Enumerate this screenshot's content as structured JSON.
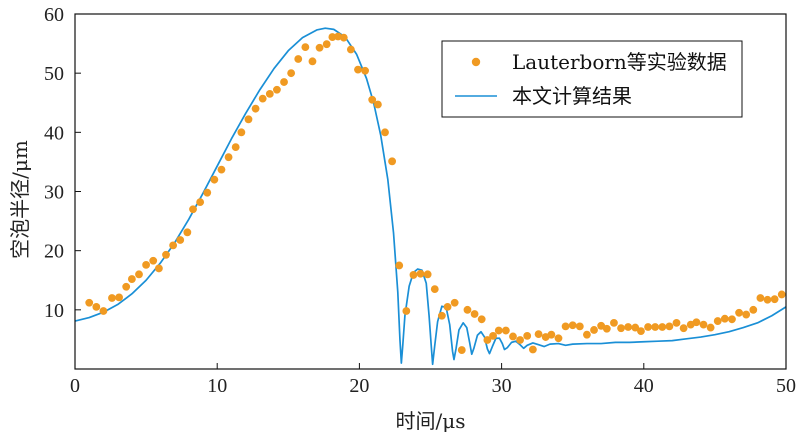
{
  "chart_data": {
    "type": "scatter",
    "xlabel": "时间/μs",
    "ylabel": "空泡半径/μm",
    "xlim": [
      0,
      50
    ],
    "ylim": [
      0,
      60
    ],
    "xticks": [
      "0",
      "10",
      "20",
      "30",
      "40",
      "50"
    ],
    "yticks": [
      "10",
      "20",
      "30",
      "40",
      "50",
      "60"
    ],
    "grid": false,
    "legend_position": "top-right",
    "colors": {
      "experiment": "#f09a22",
      "computed": "#1a8fd6"
    },
    "series": [
      {
        "name": "Lauterborn等实验数据",
        "style": "points",
        "points": [
          [
            1.0,
            11.2
          ],
          [
            1.5,
            10.5
          ],
          [
            2.0,
            9.8
          ],
          [
            2.6,
            12.0
          ],
          [
            3.1,
            12.1
          ],
          [
            3.6,
            13.9
          ],
          [
            4.0,
            15.2
          ],
          [
            4.5,
            16.0
          ],
          [
            5.0,
            17.6
          ],
          [
            5.5,
            18.3
          ],
          [
            5.9,
            17.0
          ],
          [
            6.4,
            19.3
          ],
          [
            6.9,
            20.9
          ],
          [
            7.4,
            21.8
          ],
          [
            7.9,
            23.1
          ],
          [
            8.3,
            27.0
          ],
          [
            8.8,
            28.2
          ],
          [
            9.3,
            29.8
          ],
          [
            9.8,
            32.0
          ],
          [
            10.3,
            33.7
          ],
          [
            10.8,
            35.8
          ],
          [
            11.3,
            37.5
          ],
          [
            11.7,
            40.0
          ],
          [
            12.2,
            42.2
          ],
          [
            12.7,
            44.0
          ],
          [
            13.2,
            45.7
          ],
          [
            13.7,
            46.5
          ],
          [
            14.2,
            47.2
          ],
          [
            14.7,
            48.5
          ],
          [
            15.2,
            50.0
          ],
          [
            15.7,
            52.4
          ],
          [
            16.2,
            54.4
          ],
          [
            16.7,
            52.0
          ],
          [
            17.2,
            54.3
          ],
          [
            17.7,
            54.9
          ],
          [
            18.1,
            56.1
          ],
          [
            18.5,
            56.2
          ],
          [
            18.9,
            56.0
          ],
          [
            19.4,
            54.0
          ],
          [
            19.9,
            50.6
          ],
          [
            20.4,
            50.4
          ],
          [
            20.9,
            45.5
          ],
          [
            21.3,
            44.7
          ],
          [
            21.8,
            40.0
          ],
          [
            22.3,
            35.1
          ],
          [
            22.8,
            17.5
          ],
          [
            23.3,
            9.8
          ],
          [
            23.8,
            15.9
          ],
          [
            24.3,
            16.1
          ],
          [
            24.8,
            16.0
          ],
          [
            25.3,
            13.5
          ],
          [
            25.8,
            9.0
          ],
          [
            26.2,
            10.5
          ],
          [
            26.7,
            11.2
          ],
          [
            27.2,
            3.2
          ],
          [
            27.6,
            10.0
          ],
          [
            28.1,
            9.3
          ],
          [
            28.6,
            8.4
          ],
          [
            29.0,
            4.9
          ],
          [
            29.4,
            5.6
          ],
          [
            29.8,
            6.5
          ],
          [
            30.3,
            6.5
          ],
          [
            30.8,
            5.5
          ],
          [
            31.3,
            4.9
          ],
          [
            31.8,
            5.6
          ],
          [
            32.2,
            3.3
          ],
          [
            32.6,
            5.9
          ],
          [
            33.1,
            5.4
          ],
          [
            33.5,
            5.8
          ],
          [
            34.0,
            5.2
          ],
          [
            34.5,
            7.2
          ],
          [
            35.0,
            7.4
          ],
          [
            35.5,
            7.2
          ],
          [
            36.0,
            5.8
          ],
          [
            36.5,
            6.6
          ],
          [
            37.0,
            7.3
          ],
          [
            37.4,
            6.8
          ],
          [
            37.9,
            7.8
          ],
          [
            38.4,
            6.9
          ],
          [
            38.9,
            7.1
          ],
          [
            39.4,
            7.0
          ],
          [
            39.8,
            6.4
          ],
          [
            40.3,
            7.1
          ],
          [
            40.8,
            7.1
          ],
          [
            41.3,
            7.1
          ],
          [
            41.8,
            7.2
          ],
          [
            42.3,
            7.8
          ],
          [
            42.8,
            6.9
          ],
          [
            43.3,
            7.5
          ],
          [
            43.7,
            7.9
          ],
          [
            44.2,
            7.5
          ],
          [
            44.7,
            7.0
          ],
          [
            45.2,
            8.1
          ],
          [
            45.7,
            8.5
          ],
          [
            46.2,
            8.4
          ],
          [
            46.7,
            9.5
          ],
          [
            47.2,
            9.2
          ],
          [
            47.7,
            10.0
          ],
          [
            48.2,
            12.0
          ],
          [
            48.7,
            11.7
          ],
          [
            49.2,
            11.8
          ],
          [
            49.7,
            12.6
          ]
        ]
      },
      {
        "name": "本文计算结果",
        "style": "line",
        "points": [
          [
            0.0,
            8.1
          ],
          [
            1.0,
            8.7
          ],
          [
            2.0,
            9.6
          ],
          [
            3.0,
            10.9
          ],
          [
            4.0,
            12.7
          ],
          [
            5.0,
            15.0
          ],
          [
            6.0,
            17.9
          ],
          [
            7.0,
            21.3
          ],
          [
            8.0,
            25.3
          ],
          [
            9.0,
            29.7
          ],
          [
            10.0,
            34.3
          ],
          [
            11.0,
            38.9
          ],
          [
            12.0,
            43.2
          ],
          [
            13.0,
            47.2
          ],
          [
            14.0,
            50.8
          ],
          [
            15.0,
            53.8
          ],
          [
            16.0,
            56.0
          ],
          [
            17.0,
            57.3
          ],
          [
            17.6,
            57.6
          ],
          [
            18.2,
            57.4
          ],
          [
            19.0,
            56.1
          ],
          [
            19.8,
            53.2
          ],
          [
            20.5,
            49.1
          ],
          [
            21.0,
            45.0
          ],
          [
            21.5,
            39.5
          ],
          [
            22.0,
            32.0
          ],
          [
            22.4,
            23.0
          ],
          [
            22.7,
            13.0
          ],
          [
            22.85,
            5.0
          ],
          [
            22.95,
            1.0
          ],
          [
            23.05,
            4.0
          ],
          [
            23.2,
            9.0
          ],
          [
            23.5,
            14.0
          ],
          [
            23.8,
            16.3
          ],
          [
            24.1,
            16.9
          ],
          [
            24.4,
            16.7
          ],
          [
            24.7,
            14.5
          ],
          [
            24.9,
            9.0
          ],
          [
            25.05,
            4.0
          ],
          [
            25.15,
            0.8
          ],
          [
            25.3,
            4.0
          ],
          [
            25.5,
            8.0
          ],
          [
            25.8,
            10.6
          ],
          [
            26.1,
            10.4
          ],
          [
            26.35,
            7.5
          ],
          [
            26.55,
            3.0
          ],
          [
            26.65,
            1.6
          ],
          [
            26.8,
            3.5
          ],
          [
            27.0,
            6.6
          ],
          [
            27.3,
            7.8
          ],
          [
            27.55,
            7.0
          ],
          [
            27.75,
            4.5
          ],
          [
            27.9,
            2.5
          ],
          [
            28.05,
            3.5
          ],
          [
            28.3,
            5.7
          ],
          [
            28.55,
            6.3
          ],
          [
            28.8,
            5.4
          ],
          [
            29.0,
            3.4
          ],
          [
            29.15,
            2.6
          ],
          [
            29.35,
            3.8
          ],
          [
            29.6,
            5.2
          ],
          [
            29.85,
            5.2
          ],
          [
            30.05,
            4.3
          ],
          [
            30.2,
            3.3
          ],
          [
            30.4,
            3.6
          ],
          [
            30.7,
            4.5
          ],
          [
            31.0,
            4.7
          ],
          [
            31.3,
            4.1
          ],
          [
            31.55,
            3.5
          ],
          [
            31.8,
            4.0
          ],
          [
            32.2,
            4.4
          ],
          [
            32.6,
            4.1
          ],
          [
            33.0,
            3.8
          ],
          [
            33.4,
            4.2
          ],
          [
            34.0,
            4.3
          ],
          [
            34.5,
            4.0
          ],
          [
            35.0,
            4.2
          ],
          [
            36.0,
            4.3
          ],
          [
            37.0,
            4.3
          ],
          [
            38.0,
            4.5
          ],
          [
            39.0,
            4.5
          ],
          [
            40.0,
            4.6
          ],
          [
            41.0,
            4.7
          ],
          [
            42.0,
            4.8
          ],
          [
            43.0,
            5.1
          ],
          [
            44.0,
            5.4
          ],
          [
            45.0,
            5.8
          ],
          [
            46.0,
            6.3
          ],
          [
            47.0,
            7.0
          ],
          [
            48.0,
            7.8
          ],
          [
            49.0,
            9.0
          ],
          [
            50.0,
            10.5
          ]
        ]
      }
    ]
  }
}
